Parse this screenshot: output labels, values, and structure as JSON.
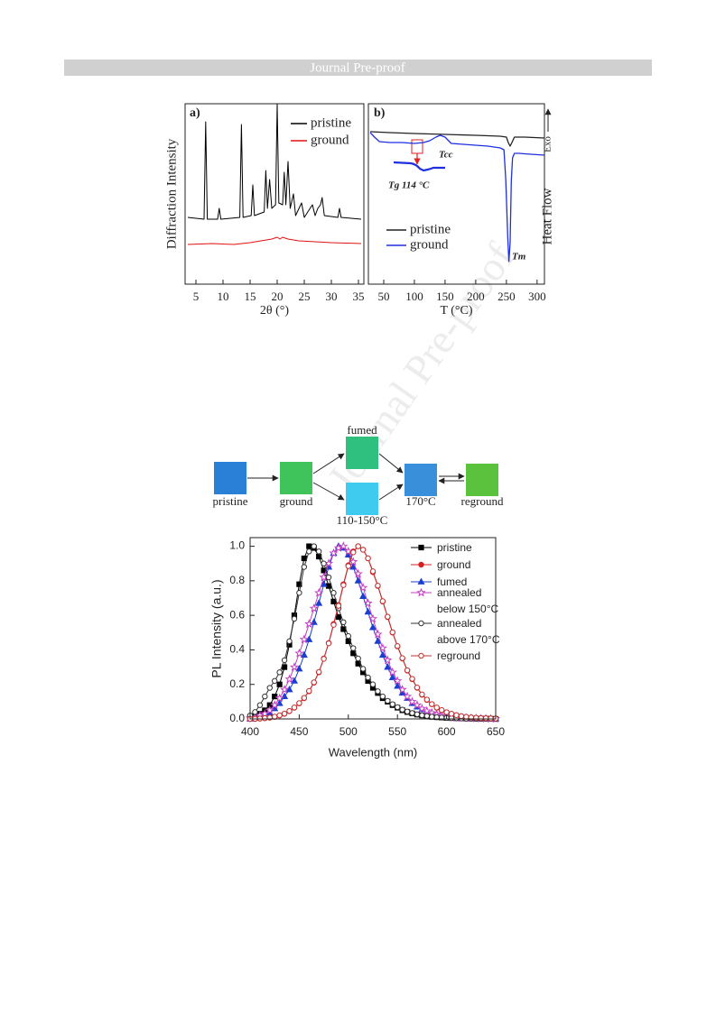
{
  "header": "Journal Pre-proof",
  "watermark": "Journal Pre-proof",
  "scheme": {
    "labels": [
      "pristine",
      "ground",
      "fumed",
      "110-150°C",
      "170°C",
      "reground"
    ]
  },
  "chart_data": [
    {
      "type": "line",
      "label": "a)",
      "xlabel": "2θ (°)",
      "ylabel": "Diffraction Intensity",
      "xlim": [
        3,
        36
      ],
      "xticks": [
        5,
        10,
        15,
        20,
        25,
        30,
        35
      ],
      "ylim": [
        0,
        100
      ],
      "series": [
        {
          "name": "pristine",
          "color": "#000000",
          "x": [
            3.5,
            6.5,
            6.8,
            7.1,
            9.0,
            9.3,
            9.6,
            13.1,
            13.4,
            13.7,
            15.2,
            15.5,
            15.8,
            17.6,
            17.9,
            18.2,
            18.6,
            19.0,
            19.7,
            20.0,
            20.3,
            21.0,
            21.3,
            21.6,
            22.0,
            22.4,
            23.0,
            23.4,
            24.5,
            25.0,
            26.5,
            27.0,
            27.5,
            28.0,
            28.3,
            28.7,
            31.2,
            31.5,
            31.8,
            35.5
          ],
          "values": [
            37,
            36,
            90,
            36,
            36,
            42,
            36,
            37,
            88.5,
            37,
            38,
            55,
            38,
            40,
            63,
            42,
            58,
            42,
            44,
            100,
            45,
            44,
            62,
            44,
            68,
            42,
            50,
            38,
            45,
            37,
            44,
            38,
            42,
            44,
            48,
            38,
            37,
            42,
            37,
            36
          ]
        },
        {
          "name": "ground",
          "color": "#e01010",
          "x": [
            3.5,
            8,
            12,
            15,
            17,
            19,
            20,
            20.5,
            21,
            22,
            24,
            27,
            30,
            35.5
          ],
          "values": [
            22,
            22.5,
            22,
            23,
            24,
            25,
            26,
            25,
            26,
            25,
            24,
            23.5,
            23,
            22.5
          ]
        }
      ]
    },
    {
      "type": "line",
      "label": "b)",
      "xlabel": "T (°C)",
      "ylabel": "Heat Flow",
      "exo": "Exo",
      "xlim": [
        25,
        312
      ],
      "xticks": [
        50,
        100,
        150,
        200,
        250,
        300
      ],
      "ylim": [
        0,
        100
      ],
      "annotations": [
        "Tcc",
        "Tg 114 °C",
        "Tm"
      ],
      "series": [
        {
          "name": "pristine",
          "color": "#222222",
          "x": [
            28,
            60,
            100,
            150,
            200,
            240,
            250,
            253,
            256,
            259,
            263,
            280,
            312
          ],
          "values": [
            84.5,
            84,
            83.5,
            83,
            82.5,
            82,
            81.5,
            78.5,
            76.5,
            78.5,
            81.5,
            81.5,
            81
          ]
        },
        {
          "name": "ground",
          "color": "#1f2fe0",
          "x": [
            28,
            35,
            43,
            60,
            80,
            100,
            115,
            125,
            135,
            142,
            150,
            160,
            180,
            200,
            220,
            240,
            246,
            249,
            252,
            254,
            256,
            258,
            260,
            263,
            270,
            290,
            312
          ],
          "values": [
            84,
            81.5,
            79,
            78.5,
            78.5,
            78,
            78.5,
            79.5,
            81.5,
            82.5,
            81.5,
            78,
            77.5,
            77,
            76.5,
            75.5,
            74.5,
            57.5,
            27.5,
            12.5,
            22.5,
            57.5,
            70,
            72.5,
            72.5,
            72,
            71.5
          ]
        }
      ]
    },
    {
      "type": "line",
      "xlabel": "Wavelength (nm)",
      "ylabel": "PL Intensity (a.u.)",
      "xlim": [
        400,
        650
      ],
      "xticks": [
        400,
        450,
        500,
        550,
        600,
        650
      ],
      "ylim": [
        0,
        1.05
      ],
      "yticks": [
        {
          "value": 0,
          "label": "0.0"
        },
        0.2,
        0.4,
        0.6,
        0.8,
        {
          "value": 1,
          "label": "1.0"
        }
      ],
      "x": [
        400,
        405,
        410,
        415,
        420,
        425,
        430,
        435,
        440,
        445,
        450,
        455,
        460,
        465,
        470,
        475,
        480,
        485,
        490,
        495,
        500,
        505,
        510,
        515,
        520,
        525,
        530,
        535,
        540,
        545,
        550,
        555,
        560,
        565,
        570,
        575,
        580,
        585,
        590,
        595,
        600,
        605,
        610,
        615,
        620,
        625,
        630,
        635,
        640,
        645,
        650
      ],
      "series": [
        {
          "name": "pristine",
          "color": "#000000",
          "marker": "square",
          "marker_fill": true,
          "values": [
            0.01,
            0.02,
            0.03,
            0.05,
            0.08,
            0.13,
            0.2,
            0.3,
            0.43,
            0.6,
            0.78,
            0.93,
            1.0,
            0.99,
            0.94,
            0.86,
            0.77,
            0.68,
            0.59,
            0.52,
            0.45,
            0.38,
            0.32,
            0.27,
            0.22,
            0.18,
            0.15,
            0.12,
            0.1,
            0.08,
            0.065,
            0.05,
            0.04,
            0.032,
            0.025,
            0.02,
            0.016,
            0.012,
            0.01,
            0.008,
            0.006,
            0.005,
            0.004,
            0.003,
            0.002,
            0.002,
            0.001,
            0.001,
            0.001,
            0.001,
            0.0
          ]
        },
        {
          "name": "ground",
          "color": "#d42020",
          "marker": "circle",
          "marker_fill": true,
          "values": [
            0.0,
            0.0,
            0.002,
            0.004,
            0.007,
            0.012,
            0.02,
            0.03,
            0.045,
            0.065,
            0.09,
            0.12,
            0.16,
            0.21,
            0.27,
            0.35,
            0.44,
            0.55,
            0.66,
            0.78,
            0.89,
            0.97,
            1.0,
            0.98,
            0.93,
            0.85,
            0.77,
            0.68,
            0.59,
            0.5,
            0.42,
            0.35,
            0.28,
            0.23,
            0.18,
            0.14,
            0.11,
            0.085,
            0.065,
            0.05,
            0.038,
            0.029,
            0.022,
            0.016,
            0.012,
            0.009,
            0.007,
            0.005,
            0.004,
            0.003,
            0.002
          ]
        },
        {
          "name": "fumed",
          "color": "#1a3fd0",
          "marker": "triangle",
          "marker_fill": true,
          "values": [
            0.0,
            0.005,
            0.01,
            0.02,
            0.035,
            0.06,
            0.09,
            0.13,
            0.17,
            0.22,
            0.29,
            0.37,
            0.46,
            0.56,
            0.67,
            0.78,
            0.88,
            0.96,
            1.0,
            0.99,
            0.95,
            0.88,
            0.8,
            0.71,
            0.62,
            0.53,
            0.45,
            0.37,
            0.3,
            0.24,
            0.19,
            0.15,
            0.12,
            0.09,
            0.07,
            0.055,
            0.042,
            0.032,
            0.025,
            0.019,
            0.014,
            0.011,
            0.008,
            0.006,
            0.005,
            0.004,
            0.003,
            0.002,
            0.002,
            0.001,
            0.001
          ]
        },
        {
          "name": "annealed below 150°C",
          "color": "#c040c0",
          "marker": "star",
          "marker_fill": false,
          "values": [
            0.005,
            0.01,
            0.02,
            0.03,
            0.05,
            0.08,
            0.12,
            0.17,
            0.23,
            0.3,
            0.38,
            0.46,
            0.55,
            0.64,
            0.73,
            0.82,
            0.9,
            0.96,
            0.99,
            1.0,
            0.97,
            0.91,
            0.84,
            0.76,
            0.67,
            0.58,
            0.49,
            0.41,
            0.34,
            0.27,
            0.22,
            0.17,
            0.13,
            0.1,
            0.08,
            0.06,
            0.046,
            0.035,
            0.027,
            0.02,
            0.015,
            0.011,
            0.008,
            0.006,
            0.005,
            0.004,
            0.003,
            0.002,
            0.002,
            0.001,
            0.001
          ]
        },
        {
          "name": "annealed above 170°C",
          "color": "#333333",
          "marker": "circle",
          "marker_fill": false,
          "values": [
            0.02,
            0.04,
            0.08,
            0.13,
            0.18,
            0.22,
            0.27,
            0.34,
            0.45,
            0.58,
            0.73,
            0.88,
            0.97,
            1.0,
            0.97,
            0.9,
            0.82,
            0.73,
            0.64,
            0.56,
            0.48,
            0.41,
            0.35,
            0.29,
            0.24,
            0.2,
            0.16,
            0.13,
            0.105,
            0.085,
            0.068,
            0.054,
            0.043,
            0.034,
            0.027,
            0.021,
            0.017,
            0.013,
            0.01,
            0.008,
            0.006,
            0.005,
            0.004,
            0.003,
            0.002,
            0.002,
            0.001,
            0.001,
            0.001,
            0.001,
            0.0
          ]
        },
        {
          "name": "reground",
          "color": "#c03030",
          "marker": "circle",
          "marker_fill": false,
          "values": [
            0.0,
            0.001,
            0.003,
            0.005,
            0.008,
            0.013,
            0.021,
            0.031,
            0.046,
            0.066,
            0.092,
            0.122,
            0.162,
            0.212,
            0.272,
            0.348,
            0.438,
            0.545,
            0.655,
            0.775,
            0.885,
            0.965,
            1.0,
            0.98,
            0.93,
            0.855,
            0.772,
            0.682,
            0.592,
            0.502,
            0.422,
            0.352,
            0.282,
            0.232,
            0.182,
            0.142,
            0.112,
            0.086,
            0.066,
            0.051,
            0.039,
            0.03,
            0.022,
            0.016,
            0.012,
            0.009,
            0.007,
            0.005,
            0.004,
            0.003,
            0.002
          ]
        }
      ]
    }
  ]
}
